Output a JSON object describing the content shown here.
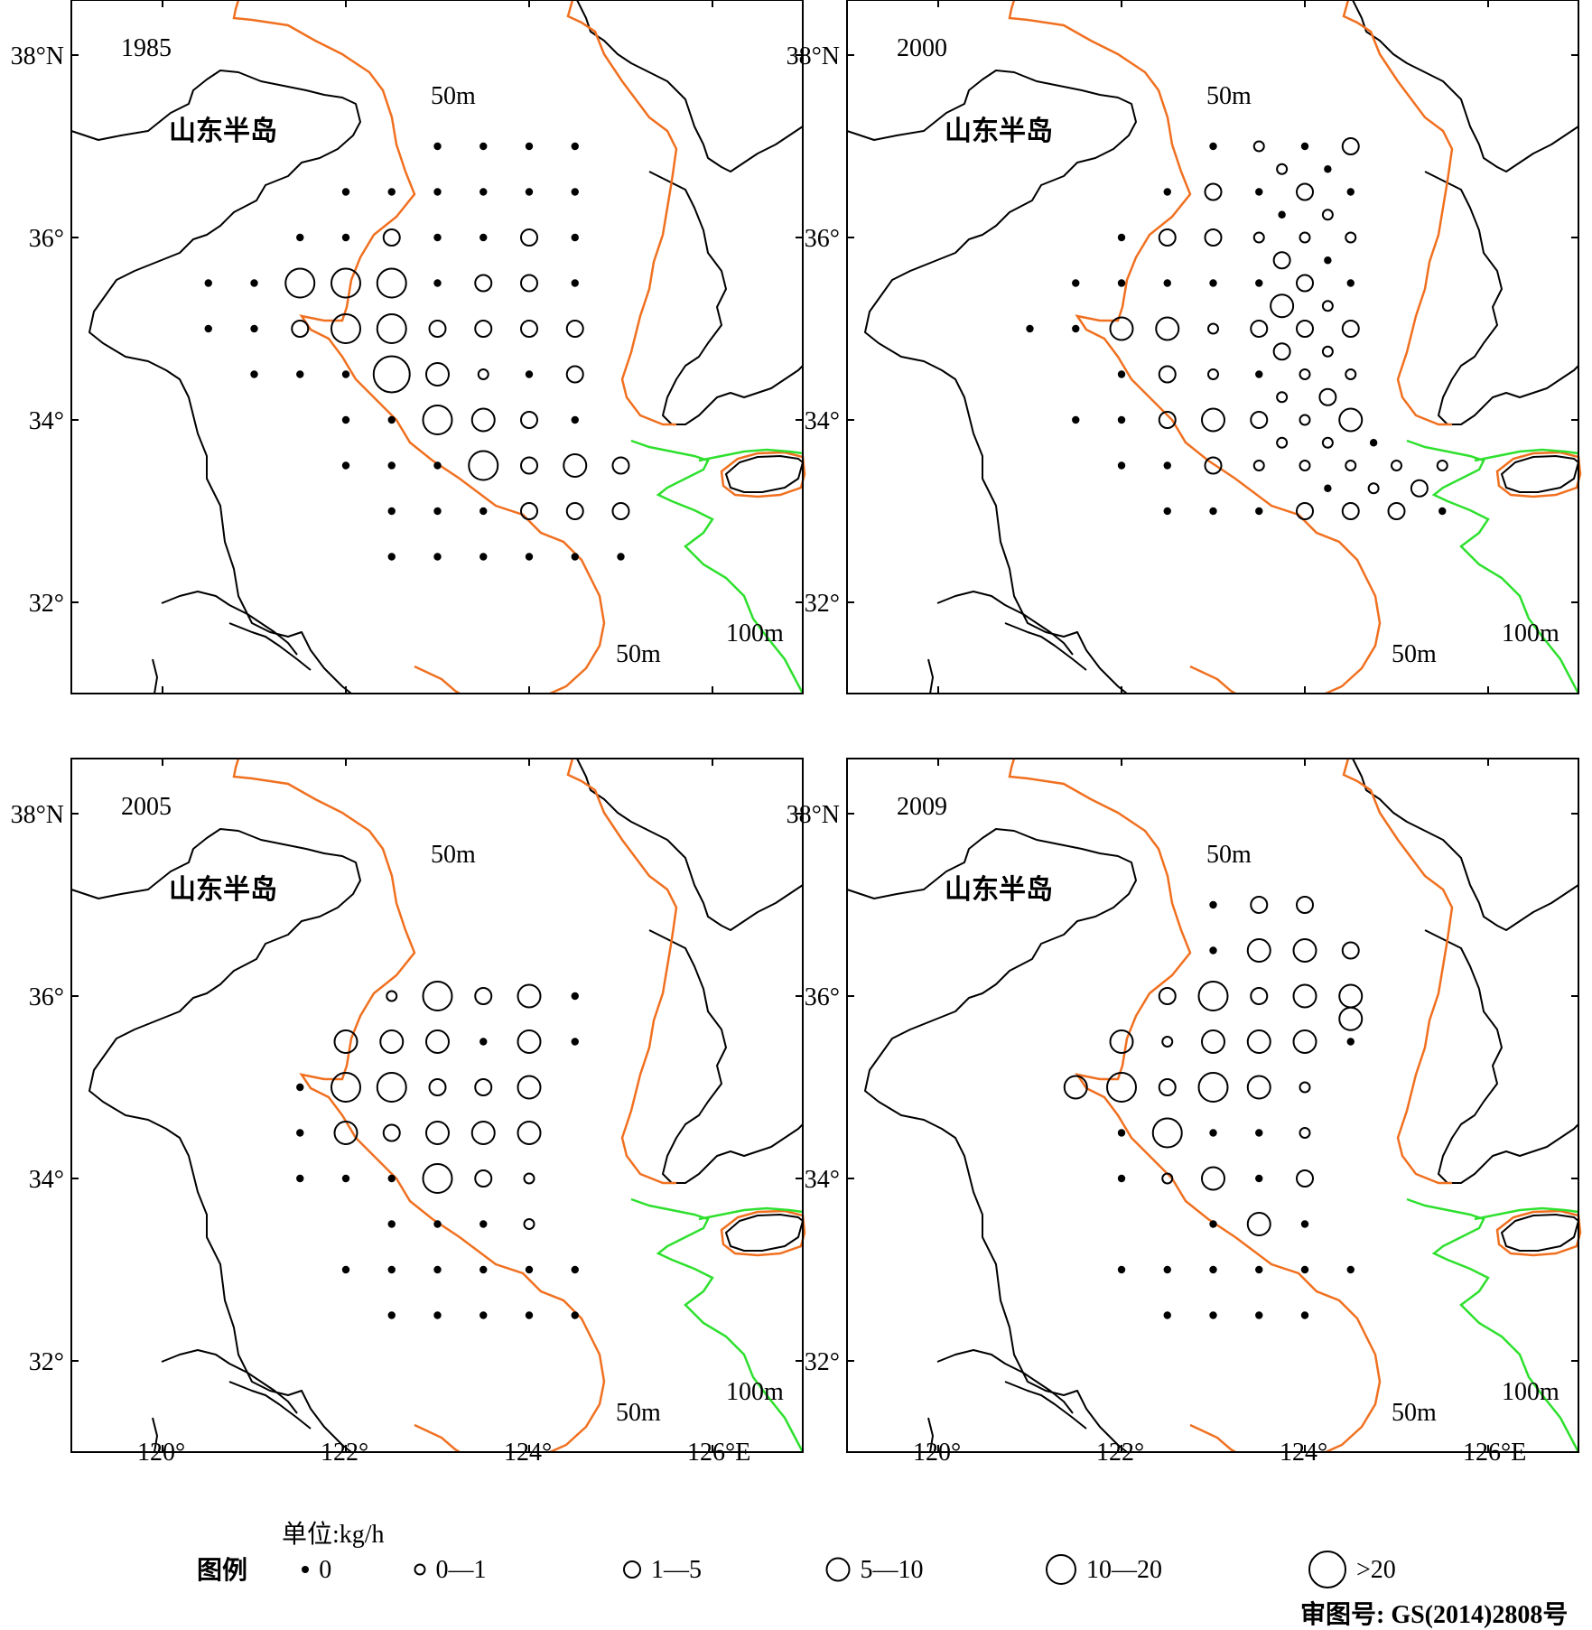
{
  "map": {
    "lat_ticks": [
      "38°N",
      "36°",
      "34°",
      "32°"
    ],
    "lon_ticks": [
      "120°",
      "122°",
      "124°",
      "126°E"
    ],
    "region_label": "山东半岛",
    "isobath_50": "50m",
    "isobath_100": "100m",
    "colors": {
      "isobath_50": "#f07020",
      "isobath_100": "#2ee02e",
      "coast": "#000000"
    }
  },
  "panels": [
    {
      "year": "1985"
    },
    {
      "year": "2000"
    },
    {
      "year": "2005"
    },
    {
      "year": "2009"
    }
  ],
  "stations": {
    "1985": [
      [
        123,
        37,
        0
      ],
      [
        123.5,
        37,
        0
      ],
      [
        124,
        37,
        0
      ],
      [
        124.5,
        37,
        0
      ],
      [
        122,
        36.5,
        0
      ],
      [
        122.5,
        36.5,
        0
      ],
      [
        123,
        36.5,
        0
      ],
      [
        123.5,
        36.5,
        0
      ],
      [
        124,
        36.5,
        0
      ],
      [
        124.5,
        36.5,
        0
      ],
      [
        121.5,
        36,
        0
      ],
      [
        122,
        36,
        0
      ],
      [
        122.5,
        36,
        2
      ],
      [
        123,
        36,
        0
      ],
      [
        123.5,
        36,
        0
      ],
      [
        124,
        36,
        2
      ],
      [
        124.5,
        36,
        0
      ],
      [
        120.5,
        35.5,
        0
      ],
      [
        121,
        35.5,
        0
      ],
      [
        121.5,
        35.5,
        4
      ],
      [
        122,
        35.5,
        4
      ],
      [
        122.5,
        35.5,
        4
      ],
      [
        123,
        35.5,
        0
      ],
      [
        123.5,
        35.5,
        2
      ],
      [
        124,
        35.5,
        2
      ],
      [
        124.5,
        35.5,
        0
      ],
      [
        120.5,
        35,
        0
      ],
      [
        121,
        35,
        0
      ],
      [
        121.5,
        35,
        2
      ],
      [
        122,
        35,
        4
      ],
      [
        122.5,
        35,
        4
      ],
      [
        123,
        35,
        2
      ],
      [
        123.5,
        35,
        2
      ],
      [
        124,
        35,
        2
      ],
      [
        124.5,
        35,
        2
      ],
      [
        121,
        34.5,
        0
      ],
      [
        121.5,
        34.5,
        0
      ],
      [
        122,
        34.5,
        0
      ],
      [
        122.5,
        34.5,
        5
      ],
      [
        123,
        34.5,
        3
      ],
      [
        123.5,
        34.5,
        1
      ],
      [
        124,
        34.5,
        0
      ],
      [
        124.5,
        34.5,
        2
      ],
      [
        122,
        34,
        0
      ],
      [
        122.5,
        34,
        0
      ],
      [
        123,
        34,
        4
      ],
      [
        123.5,
        34,
        3
      ],
      [
        124,
        34,
        2
      ],
      [
        124.5,
        34,
        0
      ],
      [
        122,
        33.5,
        0
      ],
      [
        122.5,
        33.5,
        0
      ],
      [
        123,
        33.5,
        0
      ],
      [
        123.5,
        33.5,
        4
      ],
      [
        124,
        33.5,
        2
      ],
      [
        124.5,
        33.5,
        3
      ],
      [
        125,
        33.5,
        2
      ],
      [
        122.5,
        33,
        0
      ],
      [
        123,
        33,
        0
      ],
      [
        123.5,
        33,
        0
      ],
      [
        124,
        33,
        2
      ],
      [
        124.5,
        33,
        2
      ],
      [
        125,
        33,
        2
      ],
      [
        122.5,
        32.5,
        0
      ],
      [
        123,
        32.5,
        0
      ],
      [
        123.5,
        32.5,
        0
      ],
      [
        124,
        32.5,
        0
      ],
      [
        124.5,
        32.5,
        0
      ],
      [
        125,
        32.5,
        0
      ]
    ],
    "2000": [
      [
        123,
        37,
        0
      ],
      [
        123.5,
        37,
        1
      ],
      [
        124,
        37,
        0
      ],
      [
        124.5,
        37,
        2
      ],
      [
        123.75,
        36.75,
        1
      ],
      [
        124.25,
        36.75,
        0
      ],
      [
        122.5,
        36.5,
        0
      ],
      [
        123,
        36.5,
        2
      ],
      [
        123.5,
        36.5,
        0
      ],
      [
        124,
        36.5,
        2
      ],
      [
        124.5,
        36.5,
        0
      ],
      [
        123.75,
        36.25,
        0
      ],
      [
        124.25,
        36.25,
        1
      ],
      [
        122,
        36,
        0
      ],
      [
        122.5,
        36,
        2
      ],
      [
        123,
        36,
        2
      ],
      [
        123.5,
        36,
        1
      ],
      [
        124,
        36,
        1
      ],
      [
        124.5,
        36,
        1
      ],
      [
        123.75,
        35.75,
        2
      ],
      [
        124.25,
        35.75,
        0
      ],
      [
        121.5,
        35.5,
        0
      ],
      [
        122,
        35.5,
        0
      ],
      [
        122.5,
        35.5,
        0
      ],
      [
        123,
        35.5,
        0
      ],
      [
        123.5,
        35.5,
        0
      ],
      [
        124,
        35.5,
        2
      ],
      [
        124.5,
        35.5,
        0
      ],
      [
        123.75,
        35.25,
        3
      ],
      [
        124.25,
        35.25,
        1
      ],
      [
        121,
        35,
        0
      ],
      [
        121.5,
        35,
        0
      ],
      [
        122,
        35,
        3
      ],
      [
        122.5,
        35,
        3
      ],
      [
        123,
        35,
        1
      ],
      [
        123.5,
        35,
        2
      ],
      [
        124,
        35,
        2
      ],
      [
        124.5,
        35,
        2
      ],
      [
        123.75,
        34.75,
        2
      ],
      [
        124.25,
        34.75,
        1
      ],
      [
        122,
        34.5,
        0
      ],
      [
        122.5,
        34.5,
        2
      ],
      [
        123,
        34.5,
        1
      ],
      [
        123.5,
        34.5,
        0
      ],
      [
        124,
        34.5,
        1
      ],
      [
        124.5,
        34.5,
        1
      ],
      [
        123.75,
        34.25,
        1
      ],
      [
        124.25,
        34.25,
        2
      ],
      [
        121.5,
        34,
        0
      ],
      [
        122,
        34,
        0
      ],
      [
        122.5,
        34,
        2
      ],
      [
        123,
        34,
        3
      ],
      [
        123.5,
        34,
        2
      ],
      [
        124,
        34,
        1
      ],
      [
        124.5,
        34,
        3
      ],
      [
        123.75,
        33.75,
        1
      ],
      [
        124.25,
        33.75,
        1
      ],
      [
        124.75,
        33.75,
        0
      ],
      [
        122,
        33.5,
        0
      ],
      [
        122.5,
        33.5,
        0
      ],
      [
        123,
        33.5,
        2
      ],
      [
        123.5,
        33.5,
        1
      ],
      [
        124,
        33.5,
        1
      ],
      [
        124.5,
        33.5,
        1
      ],
      [
        125,
        33.5,
        1
      ],
      [
        125.5,
        33.5,
        1
      ],
      [
        124.25,
        33.25,
        0
      ],
      [
        124.75,
        33.25,
        1
      ],
      [
        125.25,
        33.25,
        2
      ],
      [
        122.5,
        33,
        0
      ],
      [
        123,
        33,
        0
      ],
      [
        123.5,
        33,
        0
      ],
      [
        124,
        33,
        2
      ],
      [
        124.5,
        33,
        2
      ],
      [
        125,
        33,
        2
      ],
      [
        125.5,
        33,
        0
      ]
    ],
    "2005": [
      [
        122.5,
        36,
        1
      ],
      [
        123,
        36,
        4
      ],
      [
        123.5,
        36,
        2
      ],
      [
        124,
        36,
        3
      ],
      [
        124.5,
        36,
        0
      ],
      [
        122,
        35.5,
        3
      ],
      [
        122.5,
        35.5,
        3
      ],
      [
        123,
        35.5,
        3
      ],
      [
        123.5,
        35.5,
        0
      ],
      [
        124,
        35.5,
        3
      ],
      [
        124.5,
        35.5,
        0
      ],
      [
        121.5,
        35,
        0
      ],
      [
        122,
        35,
        4
      ],
      [
        122.5,
        35,
        4
      ],
      [
        123,
        35,
        2
      ],
      [
        123.5,
        35,
        2
      ],
      [
        124,
        35,
        3
      ],
      [
        121.5,
        34.5,
        0
      ],
      [
        122,
        34.5,
        3
      ],
      [
        122.5,
        34.5,
        2
      ],
      [
        123,
        34.5,
        3
      ],
      [
        123.5,
        34.5,
        3
      ],
      [
        124,
        34.5,
        3
      ],
      [
        121.5,
        34,
        0
      ],
      [
        122,
        34,
        0
      ],
      [
        122.5,
        34,
        0
      ],
      [
        123,
        34,
        4
      ],
      [
        123.5,
        34,
        2
      ],
      [
        124,
        34,
        1
      ],
      [
        122.5,
        33.5,
        0
      ],
      [
        123,
        33.5,
        0
      ],
      [
        123.5,
        33.5,
        0
      ],
      [
        124,
        33.5,
        1
      ],
      [
        122,
        33,
        0
      ],
      [
        122.5,
        33,
        0
      ],
      [
        123,
        33,
        0
      ],
      [
        123.5,
        33,
        0
      ],
      [
        124,
        33,
        0
      ],
      [
        124.5,
        33,
        0
      ],
      [
        122.5,
        32.5,
        0
      ],
      [
        123,
        32.5,
        0
      ],
      [
        123.5,
        32.5,
        0
      ],
      [
        124,
        32.5,
        0
      ],
      [
        124.5,
        32.5,
        0
      ]
    ],
    "2009": [
      [
        123,
        37,
        0
      ],
      [
        123.5,
        37,
        2
      ],
      [
        124,
        37,
        2
      ],
      [
        123,
        36.5,
        0
      ],
      [
        123.5,
        36.5,
        3
      ],
      [
        124,
        36.5,
        3
      ],
      [
        124.5,
        36.5,
        2
      ],
      [
        122.5,
        36,
        2
      ],
      [
        123,
        36,
        4
      ],
      [
        123.5,
        36,
        2
      ],
      [
        124,
        36,
        3
      ],
      [
        124.5,
        36,
        3
      ],
      [
        124.5,
        35.75,
        3
      ],
      [
        122,
        35.5,
        3
      ],
      [
        122.5,
        35.5,
        1
      ],
      [
        123,
        35.5,
        3
      ],
      [
        123.5,
        35.5,
        3
      ],
      [
        124,
        35.5,
        3
      ],
      [
        124.5,
        35.5,
        0
      ],
      [
        121.5,
        35,
        3
      ],
      [
        122,
        35,
        4
      ],
      [
        122.5,
        35,
        2
      ],
      [
        123,
        35,
        4
      ],
      [
        123.5,
        35,
        3
      ],
      [
        124,
        35,
        1
      ],
      [
        122,
        34.5,
        0
      ],
      [
        122.5,
        34.5,
        4
      ],
      [
        123,
        34.5,
        0
      ],
      [
        123.5,
        34.5,
        0
      ],
      [
        124,
        34.5,
        1
      ],
      [
        122,
        34,
        0
      ],
      [
        122.5,
        34,
        1
      ],
      [
        123,
        34,
        3
      ],
      [
        123.5,
        34,
        0
      ],
      [
        124,
        34,
        2
      ],
      [
        123,
        33.5,
        0
      ],
      [
        123.5,
        33.5,
        3
      ],
      [
        124,
        33.5,
        0
      ],
      [
        122,
        33,
        0
      ],
      [
        122.5,
        33,
        0
      ],
      [
        123,
        33,
        0
      ],
      [
        123.5,
        33,
        0
      ],
      [
        124,
        33,
        0
      ],
      [
        124.5,
        33,
        0
      ],
      [
        122.5,
        32.5,
        0
      ],
      [
        123,
        32.5,
        0
      ],
      [
        123.5,
        32.5,
        0
      ],
      [
        124,
        32.5,
        0
      ]
    ]
  },
  "legend": {
    "unit": "单位:kg/h",
    "title": "图例",
    "items": [
      "0",
      "0—1",
      "1—5",
      "5—10",
      "10—20",
      ">20"
    ]
  },
  "approval": "审图号: GS(2014)2808号"
}
